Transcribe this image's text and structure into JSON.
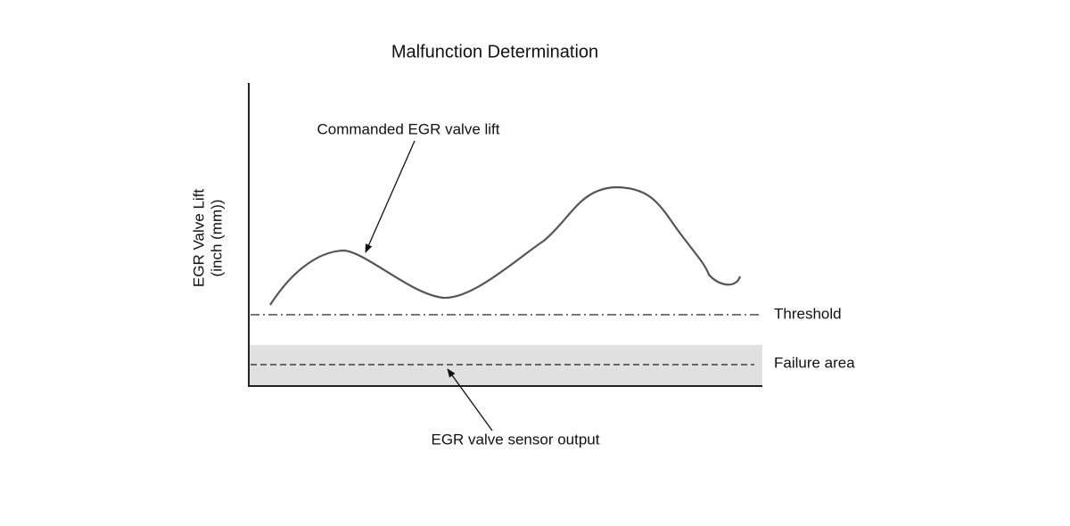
{
  "title": "Malfunction Determination",
  "y_axis_label": [
    "EGR Valve Lift",
    "(inch (mm))"
  ],
  "annotations": {
    "commanded": "Commanded EGR valve lift",
    "threshold": "Threshold",
    "failure_area": "Failure area",
    "sensor_output": "EGR valve sensor output"
  }
}
